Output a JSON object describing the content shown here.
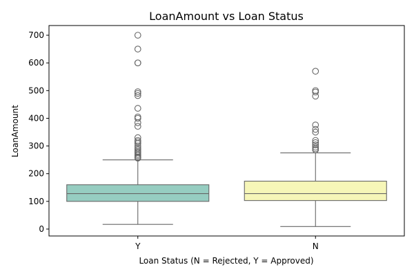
{
  "chart_data": {
    "type": "box",
    "title": "LoanAmount vs Loan Status",
    "xlabel": "Loan Status (N = Rejected, Y = Approved)",
    "ylabel": "LoanAmount",
    "ylim": [
      -25,
      735
    ],
    "yticks": [
      0,
      100,
      200,
      300,
      400,
      500,
      600,
      700
    ],
    "categories": [
      "Y",
      "N"
    ],
    "grid": false,
    "colors": {
      "Y": "#96cdc1",
      "N": "#f6f6b8",
      "line": "#666666"
    },
    "boxes": [
      {
        "category": "Y",
        "min": 17,
        "q1": 100,
        "median": 128,
        "q3": 160,
        "max": 250,
        "outliers": [
          700,
          650,
          600,
          600,
          496,
          490,
          482,
          436,
          405,
          400,
          384,
          371,
          330,
          320,
          315,
          309,
          300,
          292,
          286,
          280,
          276,
          270,
          265,
          260,
          258,
          256
        ]
      },
      {
        "category": "N",
        "min": 9,
        "q1": 103,
        "median": 128,
        "q3": 173,
        "max": 275,
        "outliers": [
          570,
          500,
          495,
          480,
          376,
          360,
          350,
          320,
          312,
          304,
          296,
          290,
          286
        ]
      }
    ]
  }
}
